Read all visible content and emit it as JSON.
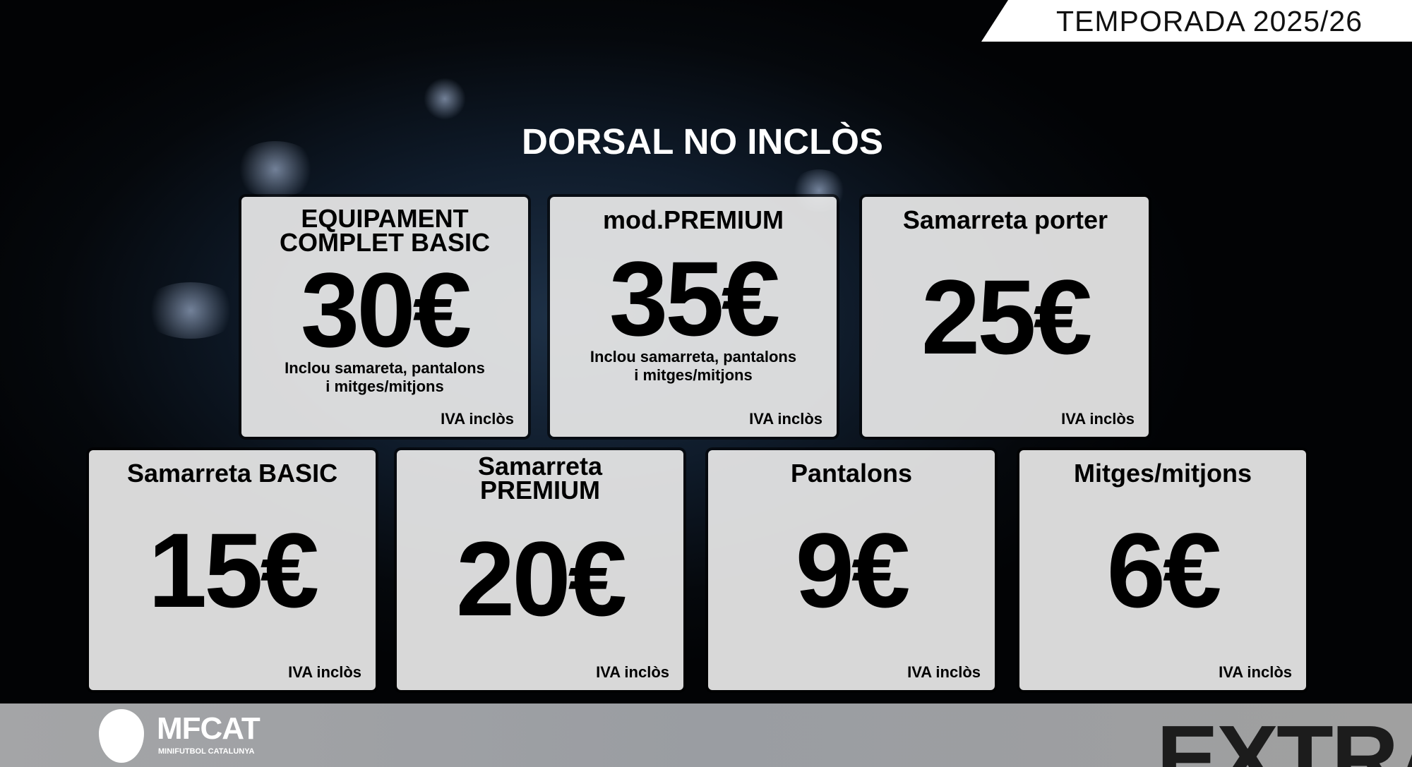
{
  "season": "TEMPORADA 2025/26",
  "heading": "DORSAL NO INCLÒS",
  "cards": [
    {
      "name": "EQUIPAMENT COMPLET BASIC",
      "price": "30€",
      "desc1": "Inclou samareta, pantalons",
      "desc2": "i mitges/mitjons",
      "iva": "IVA inclòs"
    },
    {
      "name": "mod.PREMIUM",
      "price": "35€",
      "desc1": "Inclou samarreta, pantalons",
      "desc2": "i mitges/mitjons",
      "iva": "IVA inclòs"
    },
    {
      "name": "Samarreta porter",
      "price": "25€",
      "iva": "IVA inclòs"
    },
    {
      "name": "Samarreta BASIC",
      "price": "15€",
      "iva": "IVA inclòs"
    },
    {
      "name": "Samarreta PREMIUM",
      "price": "20€",
      "iva": "IVA inclòs"
    },
    {
      "name": "Pantalons",
      "price": "9€",
      "iva": "IVA inclòs"
    },
    {
      "name": "Mitges/mitjons",
      "price": "6€",
      "iva": "IVA inclòs"
    }
  ],
  "footer": {
    "logo_text": "MFCAT",
    "logo_sub": "MINIFUTBOL CATALUNYA",
    "section": "EXTRA"
  }
}
